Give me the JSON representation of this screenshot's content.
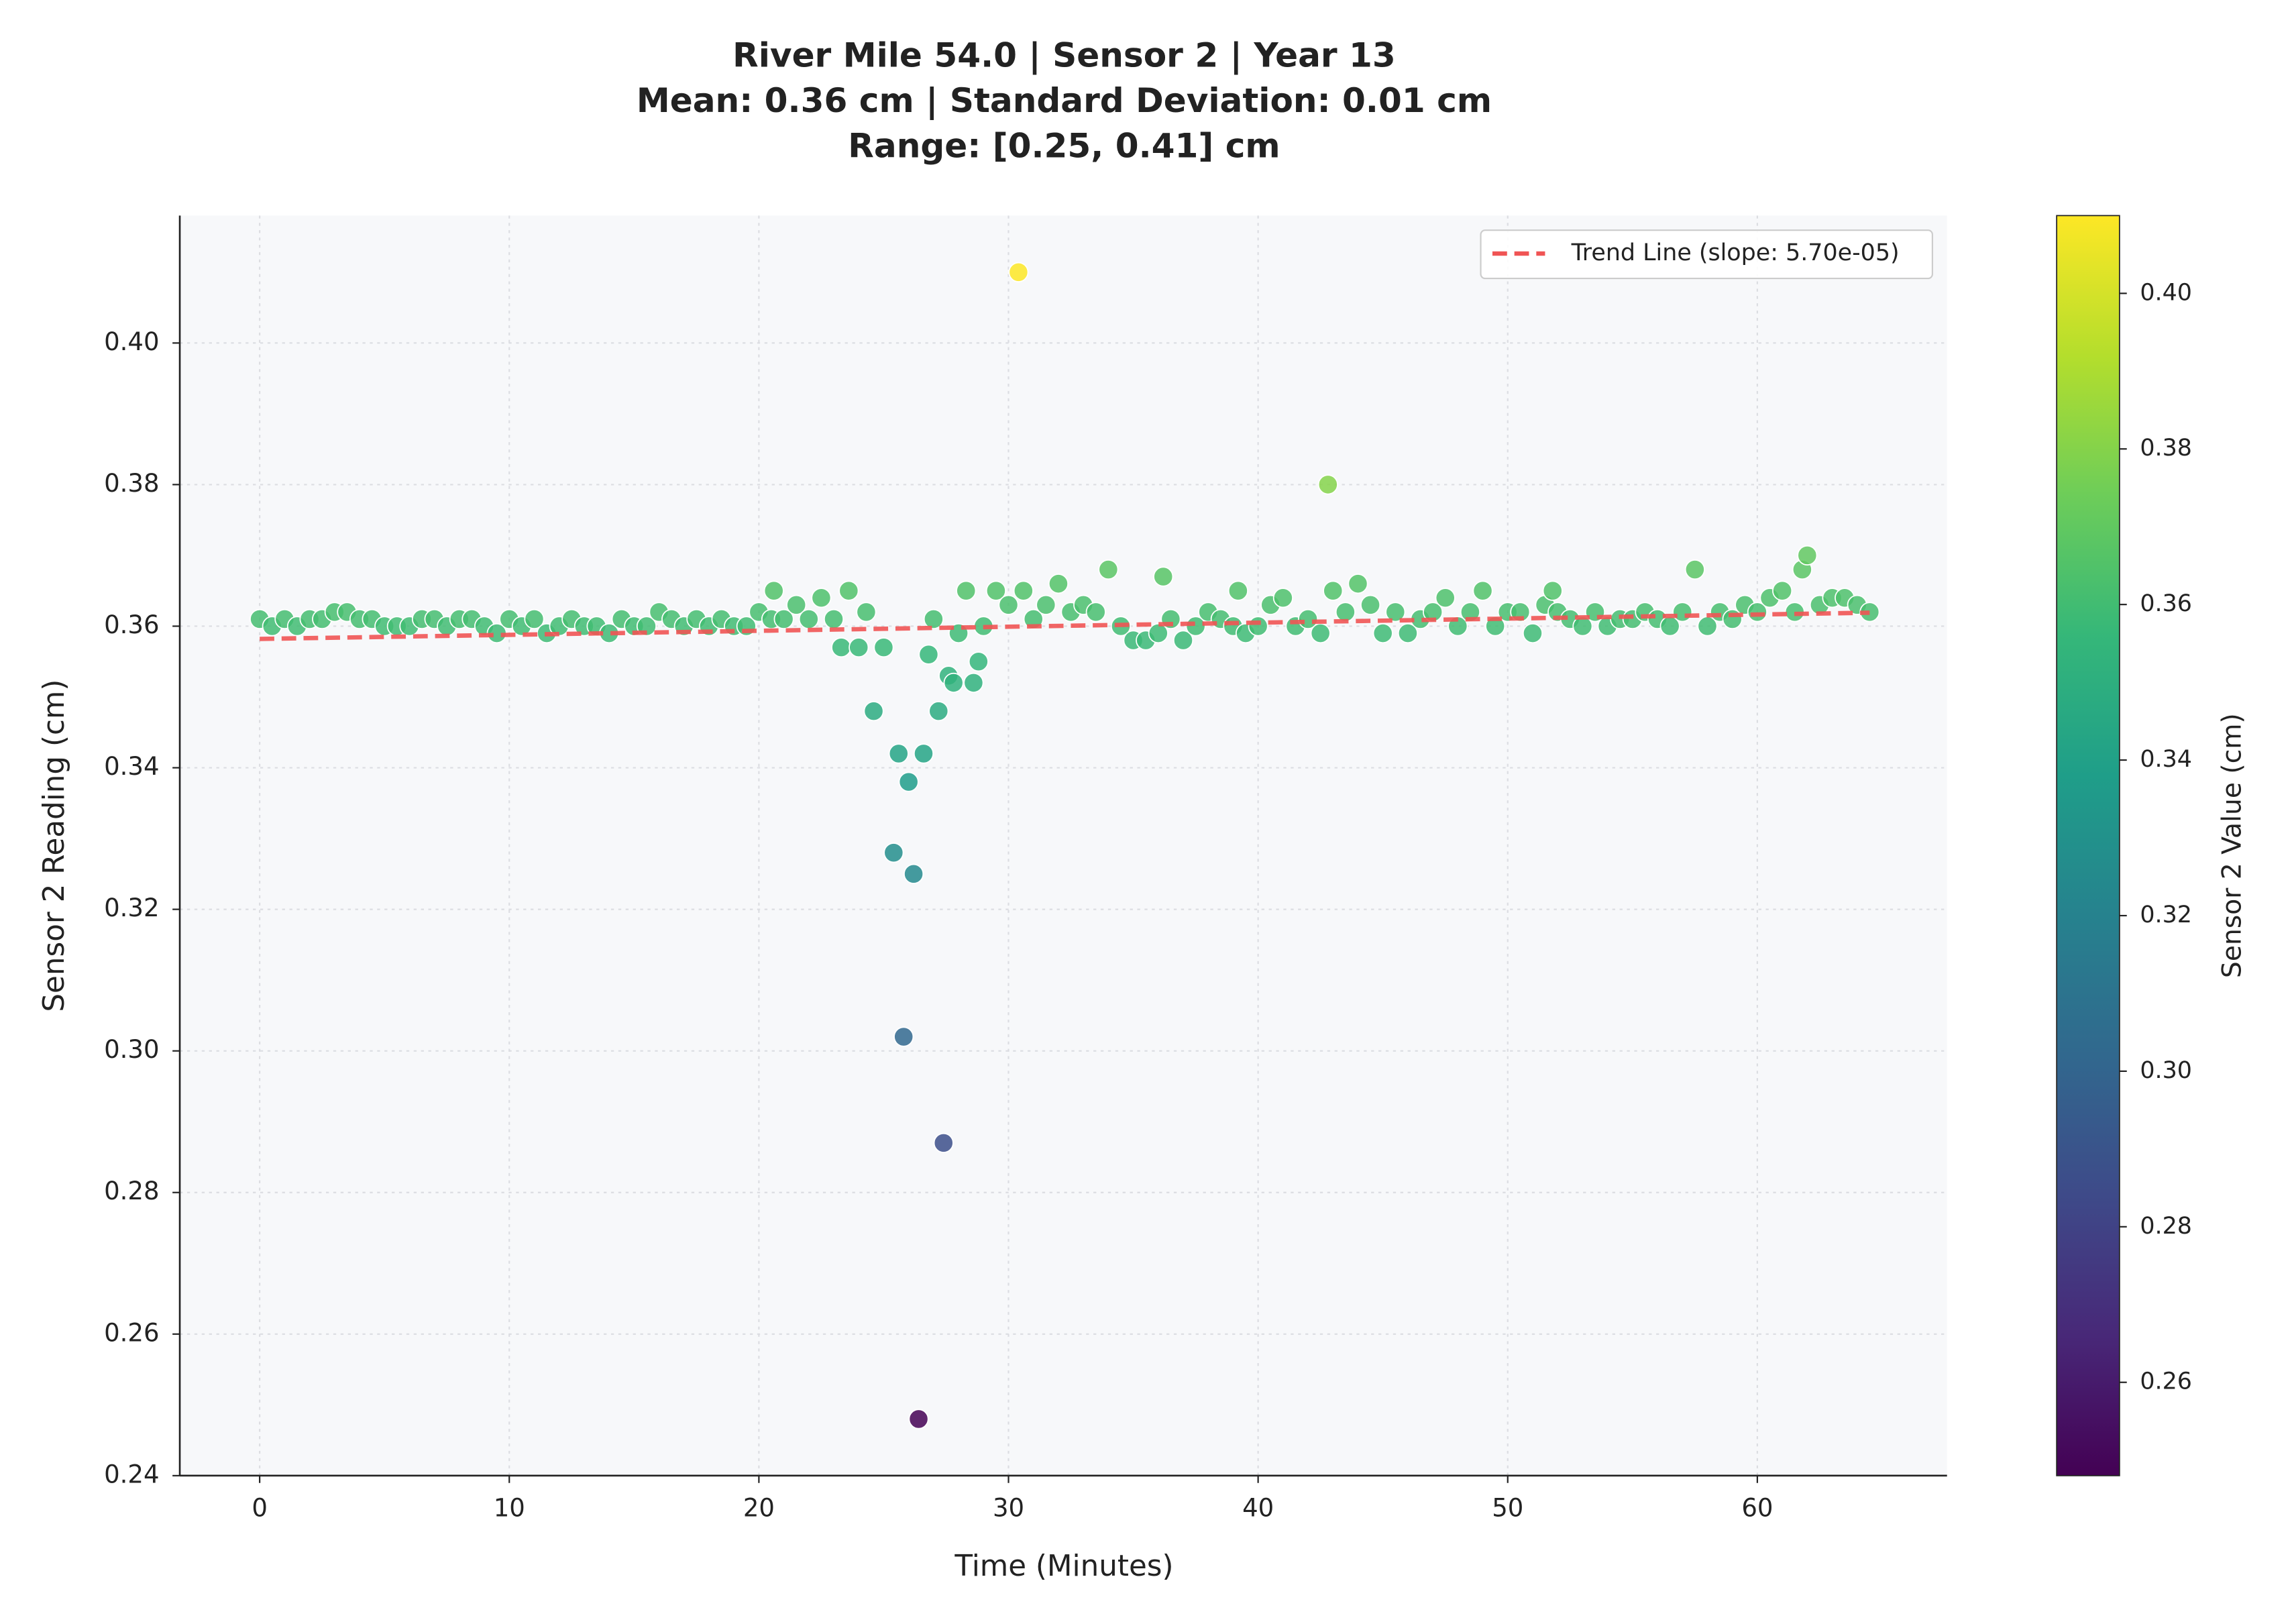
{
  "chart_data": {
    "type": "scatter",
    "title_lines": [
      "River Mile 54.0 | Sensor 2 | Year 13",
      "Mean: 0.36 cm | Standard Deviation: 0.01 cm",
      "Range: [0.25, 0.41] cm"
    ],
    "xlabel": "Time (Minutes)",
    "ylabel": "Sensor 2 Reading (cm)",
    "xlim": [
      -3.2,
      67.6
    ],
    "ylim": [
      0.24,
      0.418
    ],
    "xticks": [
      0,
      10,
      20,
      30,
      40,
      50,
      60
    ],
    "yticks": [
      0.24,
      0.26,
      0.28,
      {
        "value": 0.3,
        "label": "0.30"
      },
      0.32,
      0.34,
      0.36,
      0.38,
      {
        "value": 0.4,
        "label": "0.40"
      }
    ],
    "grid": true,
    "x": [
      0,
      0.5,
      1,
      1.5,
      2,
      2.5,
      3,
      3.5,
      4,
      4.5,
      5,
      5.5,
      6,
      6.5,
      7,
      7.5,
      8,
      8.5,
      9,
      9.5,
      10,
      10.5,
      11,
      11.5,
      12,
      12.5,
      13,
      13.5,
      14,
      14.5,
      15,
      15.5,
      16,
      16.5,
      17,
      17.5,
      18,
      18.5,
      19,
      19.5,
      20,
      20.5,
      20.6,
      21,
      21.5,
      22,
      22.5,
      23,
      23.3,
      23.6,
      24,
      24.3,
      24.6,
      25,
      25.4,
      25.6,
      25.8,
      26,
      26.2,
      26.4,
      26.6,
      26.8,
      27,
      27.2,
      27.4,
      27.6,
      27.8,
      28,
      28.3,
      28.6,
      28.8,
      29,
      29.5,
      30,
      30.4,
      30.6,
      31,
      31.5,
      32,
      32.5,
      33,
      33.5,
      34,
      34.5,
      35,
      35.5,
      36,
      36.2,
      36.5,
      37,
      37.5,
      38,
      38.5,
      39,
      39.2,
      39.5,
      40,
      40.5,
      41,
      41.5,
      42,
      42.5,
      42.8,
      43,
      43.5,
      44,
      44.5,
      45,
      45.5,
      46,
      46.5,
      47,
      47.5,
      48,
      48.5,
      49,
      49.5,
      50,
      50.5,
      51,
      51.5,
      51.8,
      52,
      52.5,
      53,
      53.5,
      54,
      54.5,
      55,
      55.5,
      56,
      56.5,
      57,
      57.5,
      58,
      58.5,
      59,
      59.5,
      60,
      60.5,
      61,
      61.5,
      61.8,
      62,
      62.5,
      63,
      63.5,
      64,
      64.5
    ],
    "values": [
      0.361,
      0.36,
      0.361,
      0.36,
      0.361,
      0.361,
      0.362,
      0.362,
      0.361,
      0.361,
      0.36,
      0.36,
      0.36,
      0.361,
      0.361,
      0.36,
      0.361,
      0.361,
      0.36,
      0.359,
      0.361,
      0.36,
      0.361,
      0.359,
      0.36,
      0.361,
      0.36,
      0.36,
      0.359,
      0.361,
      0.36,
      0.36,
      0.362,
      0.361,
      0.36,
      0.361,
      0.36,
      0.361,
      0.36,
      0.36,
      0.362,
      0.361,
      0.365,
      0.361,
      0.363,
      0.361,
      0.364,
      0.361,
      0.357,
      0.365,
      0.357,
      0.362,
      0.348,
      0.357,
      0.328,
      0.342,
      0.302,
      0.338,
      0.325,
      0.248,
      0.342,
      0.356,
      0.361,
      0.348,
      0.287,
      0.353,
      0.352,
      0.359,
      0.365,
      0.352,
      0.355,
      0.36,
      0.365,
      0.363,
      0.41,
      0.365,
      0.361,
      0.363,
      0.366,
      0.362,
      0.363,
      0.362,
      0.368,
      0.36,
      0.358,
      0.358,
      0.359,
      0.367,
      0.361,
      0.358,
      0.36,
      0.362,
      0.361,
      0.36,
      0.365,
      0.359,
      0.36,
      0.363,
      0.364,
      0.36,
      0.361,
      0.359,
      0.38,
      0.365,
      0.362,
      0.366,
      0.363,
      0.359,
      0.362,
      0.359,
      0.361,
      0.362,
      0.364,
      0.36,
      0.362,
      0.365,
      0.36,
      0.362,
      0.362,
      0.359,
      0.363,
      0.365,
      0.362,
      0.361,
      0.36,
      0.362,
      0.36,
      0.361,
      0.361,
      0.362,
      0.361,
      0.36,
      0.362,
      0.368,
      0.36,
      0.362,
      0.361,
      0.363,
      0.362,
      0.364,
      0.365,
      0.362,
      0.368,
      0.37,
      0.363,
      0.364,
      0.364,
      0.363,
      0.362
    ],
    "colormap": "viridis",
    "clim": [
      0.248,
      0.41
    ],
    "colorbar_label": "Sensor 2 Value (cm)",
    "colorbar_ticks": [
      0.26,
      0.28,
      {
        "value": 0.3,
        "label": "0.30"
      },
      0.32,
      0.34,
      0.36,
      0.38,
      {
        "value": 0.4,
        "label": "0.40"
      }
    ],
    "trend": {
      "name": "Trend Line (slope: 5.70e-05)",
      "color": "#f05454",
      "x": [
        0,
        64.5
      ],
      "values": [
        0.3582,
        0.3619
      ]
    },
    "legend": "upper right"
  }
}
